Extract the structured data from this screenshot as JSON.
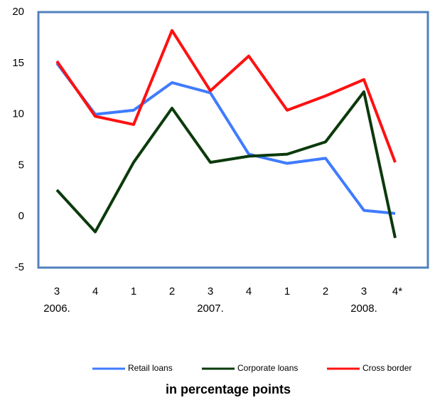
{
  "chart_data": {
    "type": "line",
    "subtitle": "in percentage points",
    "categories": [
      "3",
      "4",
      "1",
      "2",
      "3",
      "4",
      "1",
      "2",
      "3",
      "4*"
    ],
    "category_groups": [
      "2006.",
      null,
      null,
      null,
      "2007.",
      null,
      null,
      null,
      "2008.",
      null
    ],
    "series": [
      {
        "name": "Retail loans",
        "color": "#3f7bff",
        "values": [
          15.0,
          10.0,
          10.4,
          13.1,
          12.1,
          6.1,
          5.2,
          5.7,
          0.6,
          0.3
        ]
      },
      {
        "name": "Corporate loans",
        "color": "#0b3a0b",
        "values": [
          2.6,
          -1.5,
          5.3,
          10.6,
          5.3,
          5.9,
          6.1,
          7.3,
          12.2,
          -2.1
        ]
      },
      {
        "name": "Cross border",
        "color": "#ff1010",
        "values": [
          15.2,
          9.8,
          9.0,
          18.2,
          12.3,
          15.7,
          10.4,
          11.8,
          13.4,
          5.3
        ]
      }
    ],
    "ylim": [
      -5,
      20
    ],
    "yticks": [
      -5,
      0,
      5,
      10,
      15,
      20
    ],
    "grid": false,
    "legend": "bottom"
  }
}
